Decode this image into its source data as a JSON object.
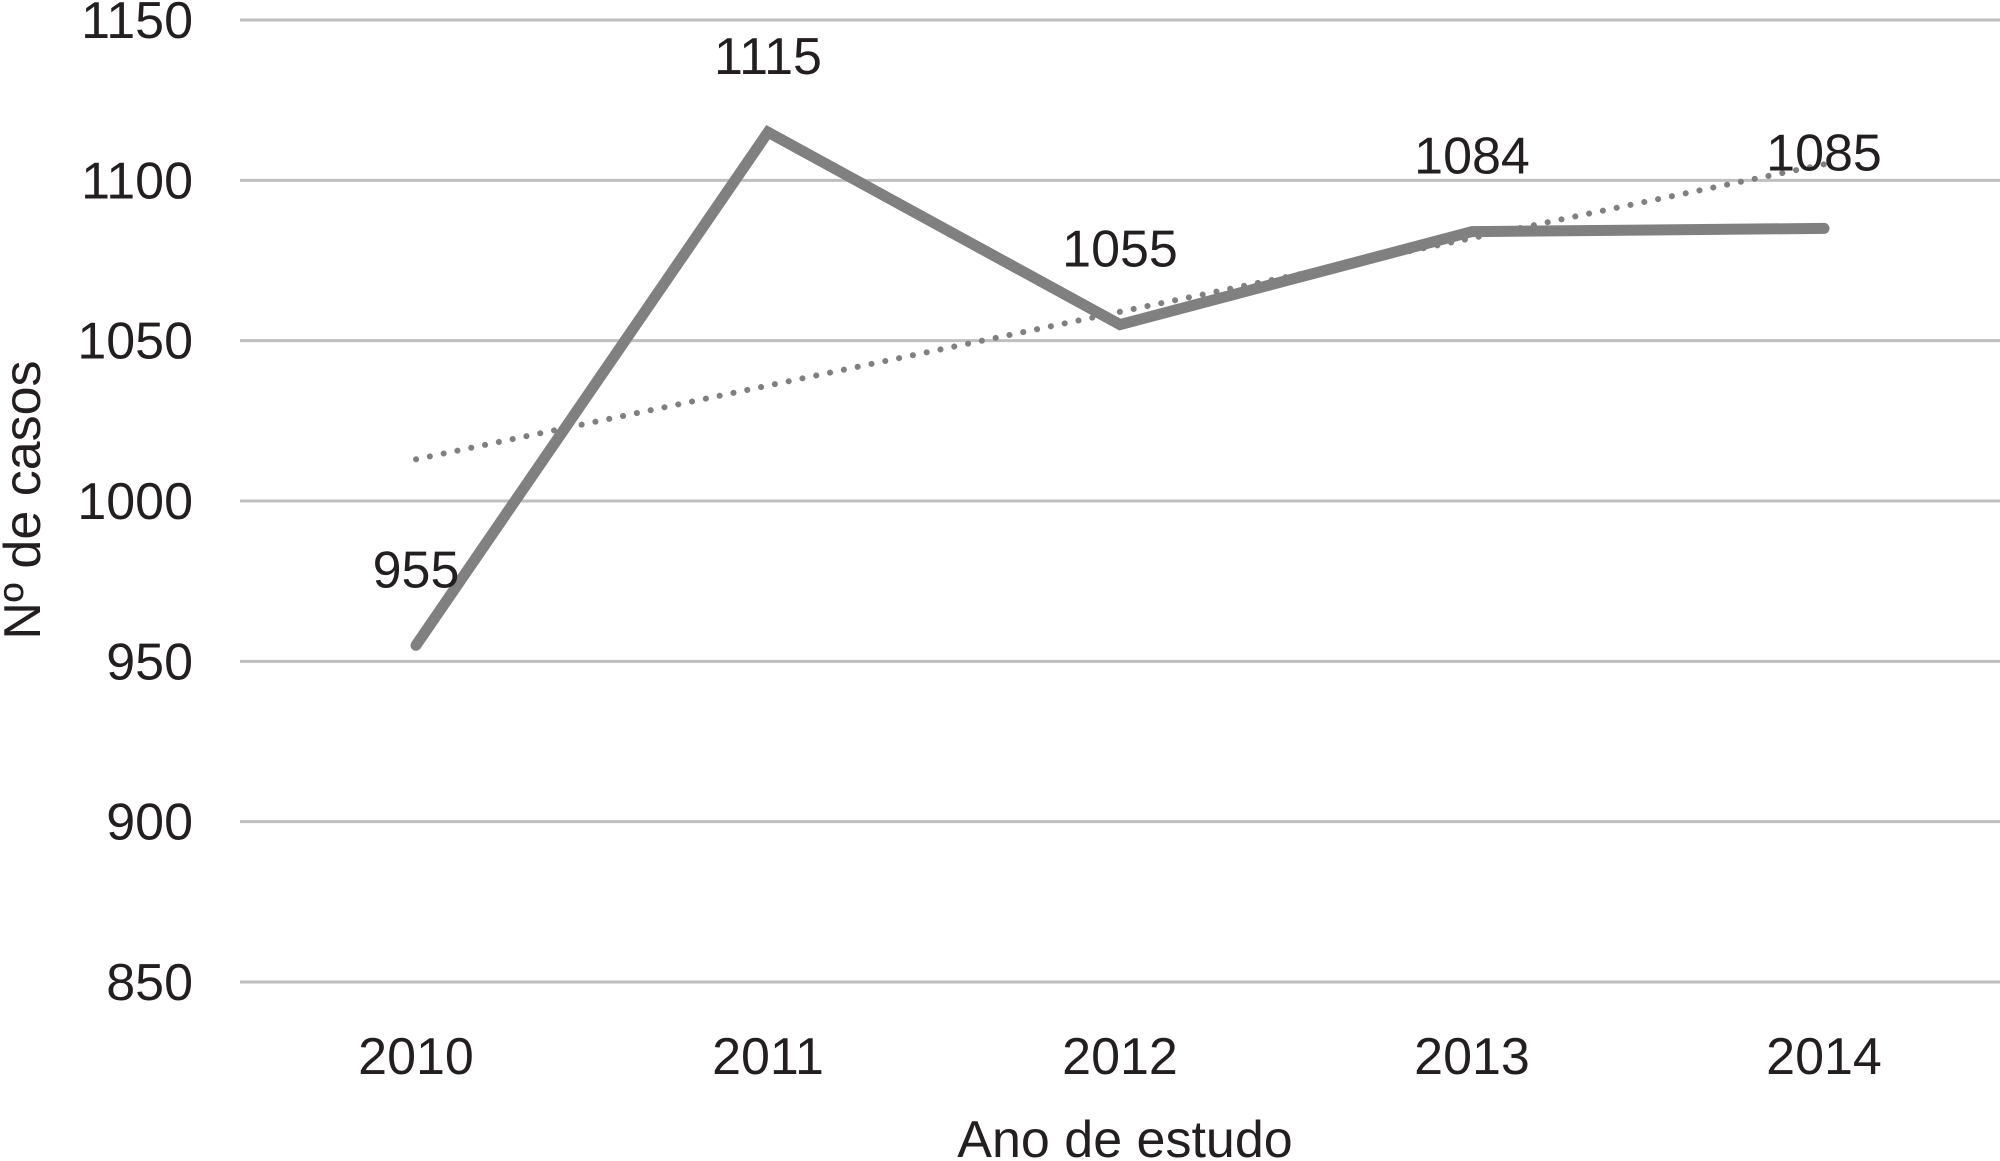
{
  "chart_data": {
    "type": "line",
    "title": "",
    "xlabel": "Ano de estudo",
    "ylabel": "Nº de casos",
    "categories": [
      "2010",
      "2011",
      "2012",
      "2013",
      "2014"
    ],
    "series": [
      {
        "values": [
          955,
          1115,
          1055,
          1084,
          1085
        ],
        "data_labels": [
          "955",
          "1115",
          "1055",
          "1084",
          "1085"
        ],
        "line_style": "solid",
        "color": "#808080"
      },
      {
        "values": [
          1013,
          1036,
          1059,
          1082,
          1105
        ],
        "line_style": "dotted",
        "color": "#808080"
      }
    ],
    "ylim": [
      850,
      1150
    ],
    "yticks": [
      850,
      900,
      950,
      1000,
      1050,
      1100,
      1150
    ],
    "ytick_labels": [
      "850",
      "900",
      "950",
      "1000",
      "1050",
      "1100",
      "1150"
    ],
    "grid": true,
    "legend": "none"
  }
}
